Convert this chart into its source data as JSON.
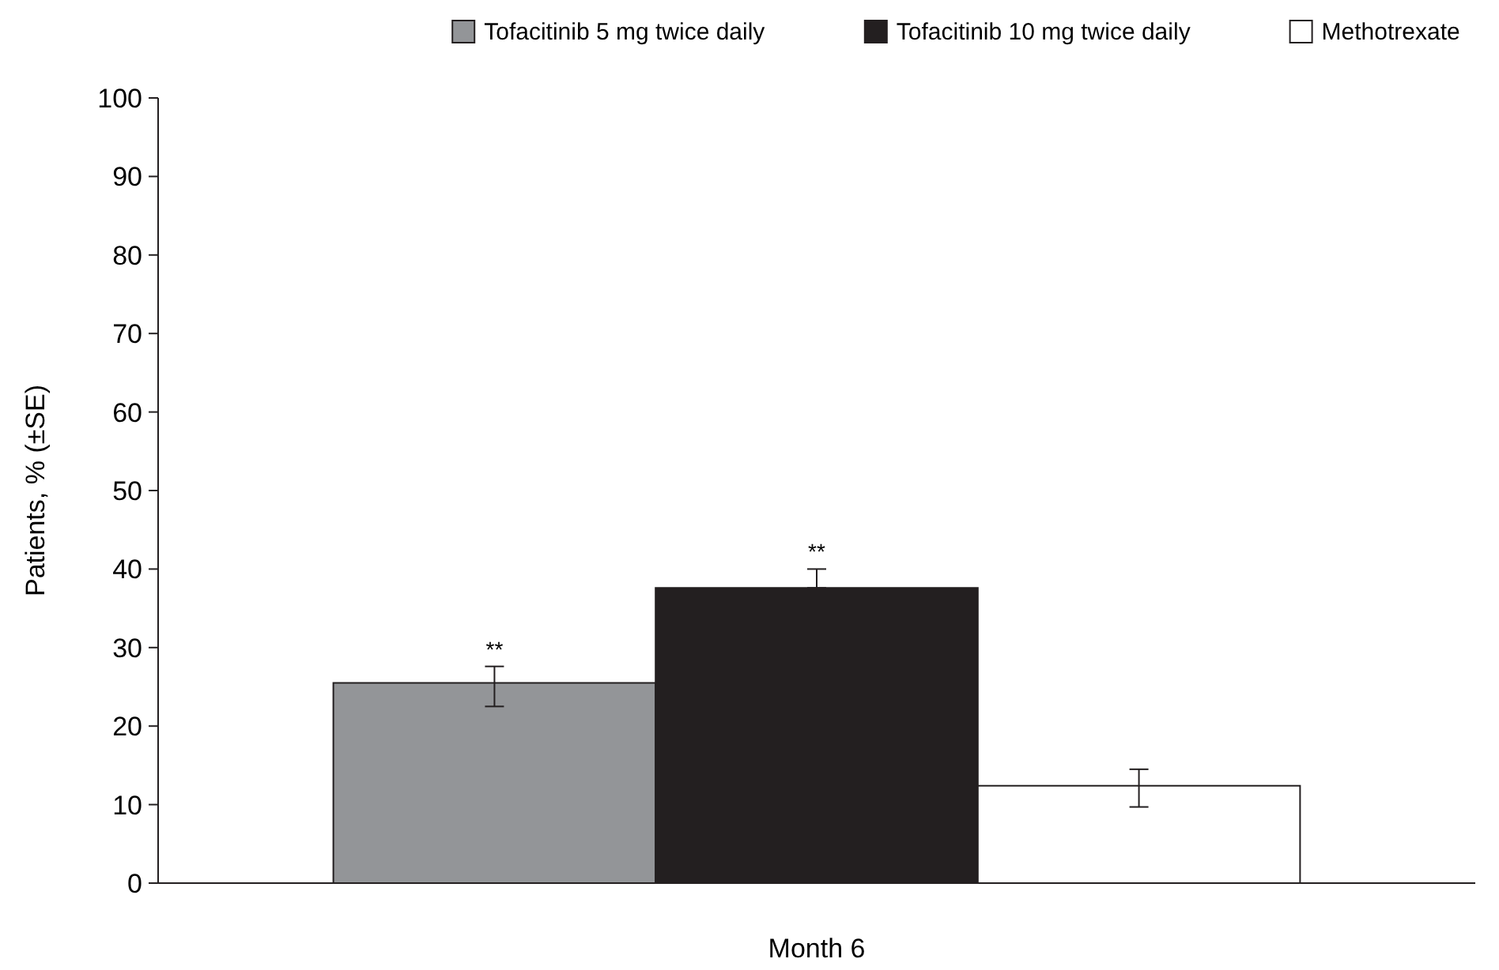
{
  "chart_data": {
    "type": "bar",
    "ylabel": "Patients, % (±SE)",
    "categories": [
      "Month 6"
    ],
    "series": [
      {
        "name": "Tofacitinib 5 mg twice daily",
        "color": "#939598",
        "values": [
          25.5
        ],
        "errors": [
          [
            22.5,
            27.6
          ]
        ]
      },
      {
        "name": "Tofacitinib 10 mg twice daily",
        "color": "#231f20",
        "values": [
          37.6
        ],
        "errors": [
          [
            37.6,
            40.0
          ]
        ]
      },
      {
        "name": "Methotrexate",
        "color": "#ffffff",
        "values": [
          12.4
        ],
        "errors": [
          [
            9.7,
            14.5
          ]
        ]
      }
    ],
    "ylim": [
      0,
      100
    ],
    "yticks": [
      0,
      10,
      20,
      30,
      40,
      50,
      60,
      70,
      80,
      90,
      100
    ],
    "grid": false,
    "legend": "top right",
    "annotations": [
      "**",
      "**"
    ]
  }
}
